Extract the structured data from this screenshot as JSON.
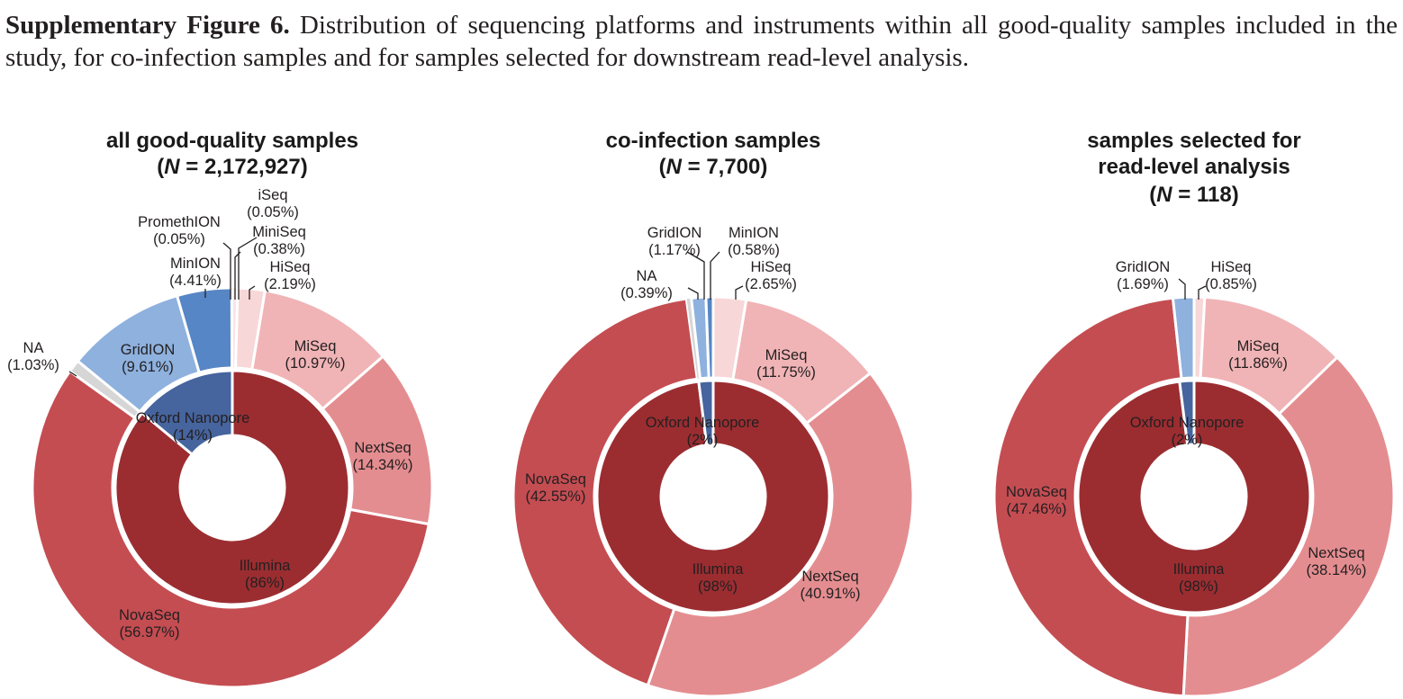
{
  "caption": {
    "label": "Supplementary Figure 6.",
    "text": " Distribution of sequencing platforms and instruments within all good-quality samples included in the study, for co-infection samples and for samples selected for downstream read-level analysis."
  },
  "colors": {
    "Illumina": "#9b2d31",
    "Oxford Nanopore": "#46649e",
    "NovaSeq": "#c44d52",
    "NextSeq": "#e48d90",
    "MiSeq": "#f0b4b6",
    "HiSeq": "#f8d7d8",
    "MiniSeq": "#fbe4e5",
    "iSeq": "#fdeeee",
    "NA": "#d6d6d6",
    "GridION": "#8eb1de",
    "MinION": "#5686c5",
    "PromethION": "#3d5f99"
  },
  "chart_data": [
    {
      "type": "donut",
      "title": "all good-quality samples",
      "n_label": "N",
      "n_value": " = 2,172,927)",
      "inner": [
        {
          "name": "Illumina",
          "value": 86,
          "label": "(86%)"
        },
        {
          "name": "Oxford Nanopore",
          "value": 14,
          "label": "(14%)"
        }
      ],
      "outer": [
        {
          "name": "iSeq",
          "value": 0.05,
          "label": "(0.05%)"
        },
        {
          "name": "MiniSeq",
          "value": 0.38,
          "label": "(0.38%)"
        },
        {
          "name": "HiSeq",
          "value": 2.19,
          "label": "(2.19%)"
        },
        {
          "name": "MiSeq",
          "value": 10.97,
          "label": "(10.97%)"
        },
        {
          "name": "NextSeq",
          "value": 14.34,
          "label": "(14.34%)"
        },
        {
          "name": "NovaSeq",
          "value": 56.97,
          "label": "(56.97%)"
        },
        {
          "name": "NA",
          "value": 1.03,
          "label": "(1.03%)"
        },
        {
          "name": "GridION",
          "value": 9.61,
          "label": "(9.61%)"
        },
        {
          "name": "MinION",
          "value": 4.41,
          "label": "(4.41%)"
        },
        {
          "name": "PromethION",
          "value": 0.05,
          "label": "(0.05%)"
        }
      ]
    },
    {
      "type": "donut",
      "title": "co-infection samples",
      "n_label": "N",
      "n_value": " = 7,700)",
      "inner": [
        {
          "name": "Illumina",
          "value": 98,
          "label": "(98%)"
        },
        {
          "name": "Oxford Nanopore",
          "value": 2,
          "label": "(2%)"
        }
      ],
      "outer": [
        {
          "name": "HiSeq",
          "value": 2.65,
          "label": "(2.65%)"
        },
        {
          "name": "MiSeq",
          "value": 11.75,
          "label": "(11.75%)"
        },
        {
          "name": "NextSeq",
          "value": 40.91,
          "label": "(40.91%)"
        },
        {
          "name": "NovaSeq",
          "value": 42.55,
          "label": "(42.55%)"
        },
        {
          "name": "NA",
          "value": 0.39,
          "label": "(0.39%)"
        },
        {
          "name": "GridION",
          "value": 1.17,
          "label": "(1.17%)"
        },
        {
          "name": "MinION",
          "value": 0.58,
          "label": "(0.58%)"
        }
      ]
    },
    {
      "type": "donut",
      "title": "samples selected for read-level analysis",
      "title_lines": [
        "samples selected for",
        "read-level analysis"
      ],
      "n_label": "N",
      "n_value": " = 118)",
      "inner": [
        {
          "name": "Illumina",
          "value": 98,
          "label": "(98%)"
        },
        {
          "name": "Oxford Nanopore",
          "value": 2,
          "label": "(2%)"
        }
      ],
      "outer": [
        {
          "name": "HiSeq",
          "value": 0.85,
          "label": "(0.85%)"
        },
        {
          "name": "MiSeq",
          "value": 11.86,
          "label": "(11.86%)"
        },
        {
          "name": "NextSeq",
          "value": 38.14,
          "label": "(38.14%)"
        },
        {
          "name": "NovaSeq",
          "value": 47.46,
          "label": "(47.46%)"
        },
        {
          "name": "GridION",
          "value": 1.69,
          "label": "(1.69%)"
        }
      ]
    }
  ]
}
